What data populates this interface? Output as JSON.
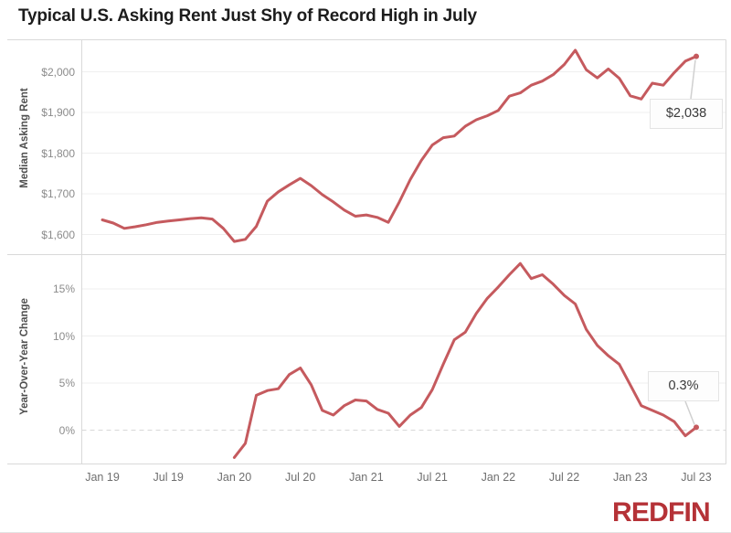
{
  "title": "Typical U.S. Asking Rent Just Shy of Record High in July",
  "logo_text": "REDFIN",
  "style": {
    "line_color": "#c55a5e",
    "logo_color": "#b53237",
    "gridline_color": "#efefef",
    "frame_color": "#d9d9d9",
    "zero_line_color": "#d8d8d8",
    "leader_line_color": "#d0d0d0"
  },
  "annotations": {
    "rent_latest": "$2,038",
    "yoy_latest": "0.3%"
  },
  "x_axis": {
    "start_month": "Jan 2019",
    "end_month": "Jul 2023",
    "ticks": [
      {
        "label": "Jan 19",
        "month": 0
      },
      {
        "label": "Jul 19",
        "month": 6
      },
      {
        "label": "Jan 20",
        "month": 12
      },
      {
        "label": "Jul 20",
        "month": 18
      },
      {
        "label": "Jan 21",
        "month": 24
      },
      {
        "label": "Jul 21",
        "month": 30
      },
      {
        "label": "Jan 22",
        "month": 36
      },
      {
        "label": "Jul 22",
        "month": 42
      },
      {
        "label": "Jan 23",
        "month": 48
      },
      {
        "label": "Jul 23",
        "month": 54
      }
    ]
  },
  "chart_data": [
    {
      "type": "line",
      "pane": "top",
      "title": "Typical U.S. Asking Rent Just Shy of Record High in July",
      "ylabel": "Median Asking Rent",
      "xlabel": "",
      "frequency": "monthly",
      "x_start": "2019-01",
      "x_end": "2023-07",
      "ylim": [
        1575,
        2075
      ],
      "grid": true,
      "legend": "none",
      "yticks": [
        {
          "label": "$1,600",
          "value": 1600
        },
        {
          "label": "$1,700",
          "value": 1700
        },
        {
          "label": "$1,800",
          "value": 1800
        },
        {
          "label": "$1,900",
          "value": 1900
        },
        {
          "label": "$2,000",
          "value": 2000
        }
      ],
      "series": [
        {
          "name": "Median Asking Rent (USD)",
          "start_month_index": 0,
          "values": [
            1636,
            1628,
            1615,
            1619,
            1624,
            1630,
            1633,
            1636,
            1639,
            1641,
            1638,
            1615,
            1583,
            1588,
            1620,
            1682,
            1705,
            1722,
            1738,
            1720,
            1698,
            1680,
            1660,
            1645,
            1648,
            1642,
            1630,
            1680,
            1735,
            1782,
            1820,
            1838,
            1842,
            1866,
            1882,
            1892,
            1905,
            1940,
            1948,
            1967,
            1977,
            1993,
            2018,
            2053,
            2005,
            1985,
            2007,
            1984,
            1941,
            1933,
            1972,
            1967,
            1998,
            2026,
            2038
          ]
        }
      ],
      "annotation": {
        "label": "$2,038",
        "month": "Jul 2023",
        "value": 2038
      }
    },
    {
      "type": "line",
      "pane": "bottom",
      "ylabel": "Year-Over-Year Change",
      "xlabel": "",
      "frequency": "monthly",
      "x_start": "2020-01",
      "x_end": "2023-07",
      "ylim": [
        -3.6,
        18.7
      ],
      "grid": true,
      "zero_line_dashed": true,
      "legend": "none",
      "yticks": [
        {
          "label": "0%",
          "value": 0
        },
        {
          "label": "5%",
          "value": 5
        },
        {
          "label": "10%",
          "value": 10
        },
        {
          "label": "15%",
          "value": 15
        }
      ],
      "series": [
        {
          "name": "Year-Over-Year Change (%)",
          "start_month_index": 12,
          "values": [
            -2.9,
            -1.4,
            3.7,
            4.2,
            4.4,
            5.9,
            6.6,
            4.8,
            2.1,
            1.6,
            2.6,
            3.2,
            3.1,
            2.2,
            1.8,
            0.4,
            1.6,
            2.4,
            4.3,
            7.0,
            9.6,
            10.4,
            12.4,
            14.0,
            15.2,
            16.5,
            17.7,
            16.1,
            16.5,
            15.5,
            14.3,
            13.4,
            10.7,
            9.0,
            7.9,
            7.0,
            4.8,
            2.6,
            2.1,
            1.6,
            0.9,
            -0.6,
            0.3
          ]
        }
      ],
      "annotation": {
        "label": "0.3%",
        "month": "Jul 2023",
        "value": 0.3
      }
    }
  ]
}
